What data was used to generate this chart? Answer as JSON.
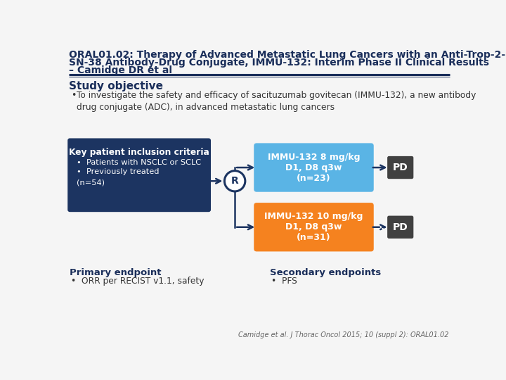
{
  "title_line1": "ORAL01.02: Therapy of Advanced Metastatic Lung Cancers with an Anti-Trop-2-",
  "title_line2": "SN-38 Antibody-Drug Conjugate, IMMU-132: Interim Phase II Clinical Results",
  "title_line3": "– Camidge DR et al",
  "title_color": "#1a2e5a",
  "title_fontsize": 10.0,
  "title_fontweight": "bold",
  "bg_color": "#f5f5f5",
  "header_line_color": "#1a2e5a",
  "section_study_obj": "Study objective",
  "section_study_obj_fontsize": 11,
  "bullet_line1": "To investigate the safety and efficacy of sacituzumab govitecan (IMMU-132), a new antibody",
  "bullet_line2": "drug conjugate (ADC), in advanced metastatic lung cancers",
  "key_criteria_box_color": "#1c3461",
  "key_criteria_title": "Key patient inclusion criteria",
  "key_criteria_bullet1": "Patients with NSCLC or SCLC",
  "key_criteria_bullet2": "Previously treated",
  "key_criteria_n": "(n=54)",
  "blue_box_color": "#5ab4e5",
  "blue_box_text": "IMMU-132 8 mg/kg\nD1, D8 q3w\n(n=23)",
  "orange_box_color": "#f5821f",
  "orange_box_text": "IMMU-132 10 mg/kg\nD1, D8 q3w\n(n=31)",
  "pd_box_color": "#404040",
  "pd_text": "PD",
  "arrow_color": "#1c3461",
  "R_circle_color": "#ffffff",
  "R_circle_border": "#1c3461",
  "primary_endpoint_title": "Primary endpoint",
  "primary_endpoint_bullet": "ORR per RECIST v1.1, safety",
  "secondary_endpoint_title": "Secondary endpoints",
  "secondary_endpoint_bullet": "PFS",
  "footnote": "Camidge et al. J Thorac Oncol 2015; 10 (suppl 2): ORAL01.02"
}
